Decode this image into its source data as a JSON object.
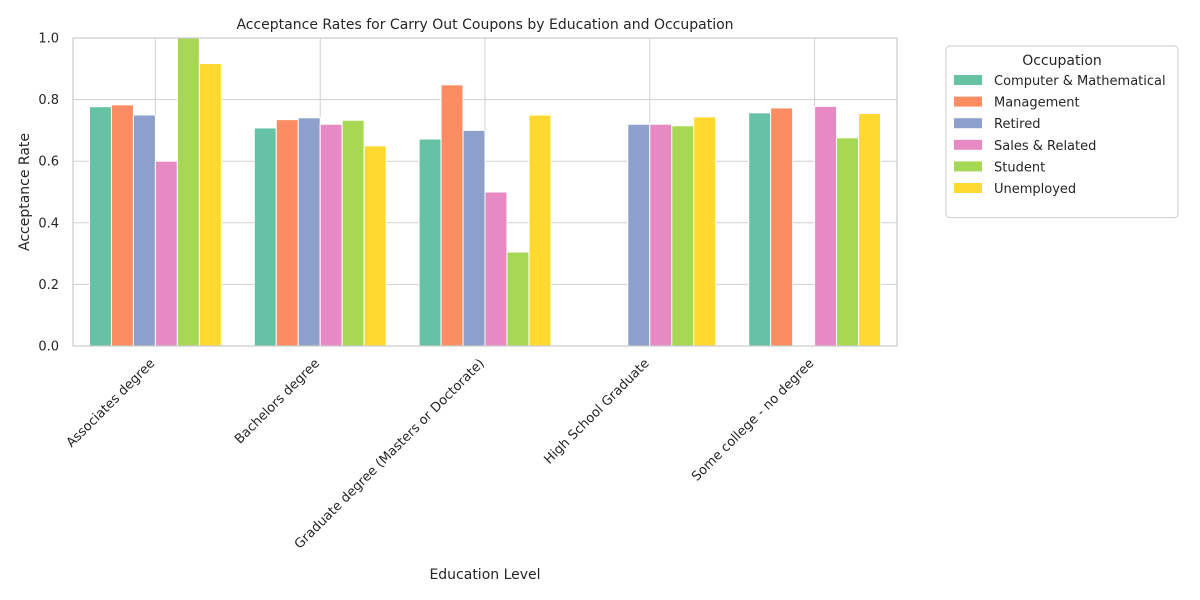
{
  "chart_data": {
    "type": "bar",
    "title": "Acceptance Rates for Carry Out Coupons by Education and Occupation",
    "xlabel": "Education Level",
    "ylabel": "Acceptance Rate",
    "ylim": [
      0,
      1.0
    ],
    "yticks": [
      "0.0",
      "0.2",
      "0.4",
      "0.6",
      "0.8",
      "1.0"
    ],
    "categories": [
      "Associates degree",
      "Bachelors degree",
      "Graduate degree (Masters or Doctorate)",
      "High School Graduate",
      "Some college - no degree"
    ],
    "legend_title": "Occupation",
    "legend_position": "outside-right",
    "grid": true,
    "series": [
      {
        "name": "Computer & Mathematical",
        "color": "#66c2a5",
        "values": [
          0.777,
          0.708,
          0.672,
          null,
          0.757
        ]
      },
      {
        "name": "Management",
        "color": "#fc8d62",
        "values": [
          0.783,
          0.735,
          0.848,
          null,
          0.773
        ]
      },
      {
        "name": "Retired",
        "color": "#8da0cb",
        "values": [
          0.75,
          0.741,
          0.7,
          0.72,
          null
        ]
      },
      {
        "name": "Sales & Related",
        "color": "#e78ac3",
        "values": [
          0.6,
          0.72,
          0.5,
          0.72,
          0.778
        ]
      },
      {
        "name": "Student",
        "color": "#a6d854",
        "values": [
          1.0,
          0.733,
          0.305,
          0.715,
          0.676
        ]
      },
      {
        "name": "Unemployed",
        "color": "#ffd92f",
        "values": [
          0.917,
          0.65,
          0.75,
          0.744,
          0.755
        ]
      }
    ]
  }
}
